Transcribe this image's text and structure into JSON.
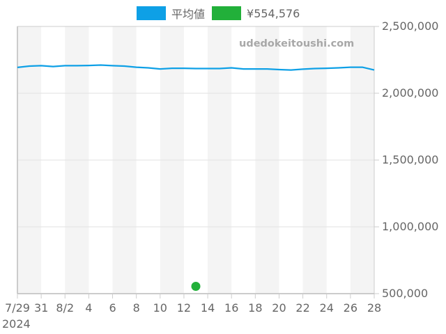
{
  "legend": {
    "items": [
      {
        "label": "平均値",
        "color": "#0ea0e6"
      },
      {
        "label": "¥554,576",
        "color": "#22b03a"
      }
    ]
  },
  "watermark": "udedokeitoushi.com",
  "x_axis": {
    "ticks": [
      "7/29",
      "31",
      "8/2",
      "4",
      "6",
      "8",
      "10",
      "12",
      "14",
      "16",
      "18",
      "20",
      "22",
      "24",
      "26",
      "28"
    ],
    "year_label": "2024"
  },
  "y_axis": {
    "ticks": [
      "2,500,000",
      "2,000,000",
      "1,500,000",
      "1,000,000",
      "500,000"
    ]
  },
  "chart_data": {
    "type": "line",
    "title": "",
    "xlabel": "",
    "ylabel": "",
    "ylim": [
      500000,
      2500000
    ],
    "y_axis_position": "right",
    "grid": true,
    "legend_position": "top",
    "x": [
      "2024-07-29",
      "2024-07-30",
      "2024-07-31",
      "2024-08-01",
      "2024-08-02",
      "2024-08-03",
      "2024-08-04",
      "2024-08-05",
      "2024-08-06",
      "2024-08-07",
      "2024-08-08",
      "2024-08-09",
      "2024-08-10",
      "2024-08-11",
      "2024-08-12",
      "2024-08-13",
      "2024-08-14",
      "2024-08-15",
      "2024-08-16",
      "2024-08-17",
      "2024-08-18",
      "2024-08-19",
      "2024-08-20",
      "2024-08-21",
      "2024-08-22",
      "2024-08-23",
      "2024-08-24",
      "2024-08-25",
      "2024-08-26",
      "2024-08-27",
      "2024-08-28"
    ],
    "series": [
      {
        "name": "平均値",
        "type": "line",
        "color": "#0ea0e6",
        "values": [
          2193000,
          2203000,
          2206000,
          2200000,
          2206000,
          2206000,
          2208000,
          2211000,
          2206000,
          2203000,
          2195000,
          2190000,
          2182000,
          2187000,
          2187000,
          2185000,
          2185000,
          2185000,
          2190000,
          2182000,
          2182000,
          2182000,
          2177000,
          2174000,
          2180000,
          2185000,
          2187000,
          2190000,
          2195000,
          2195000,
          2174000
        ]
      },
      {
        "name": "¥554,576",
        "type": "scatter",
        "color": "#22b03a",
        "points": [
          {
            "x": "2024-08-13",
            "y": 554576
          }
        ]
      }
    ]
  }
}
